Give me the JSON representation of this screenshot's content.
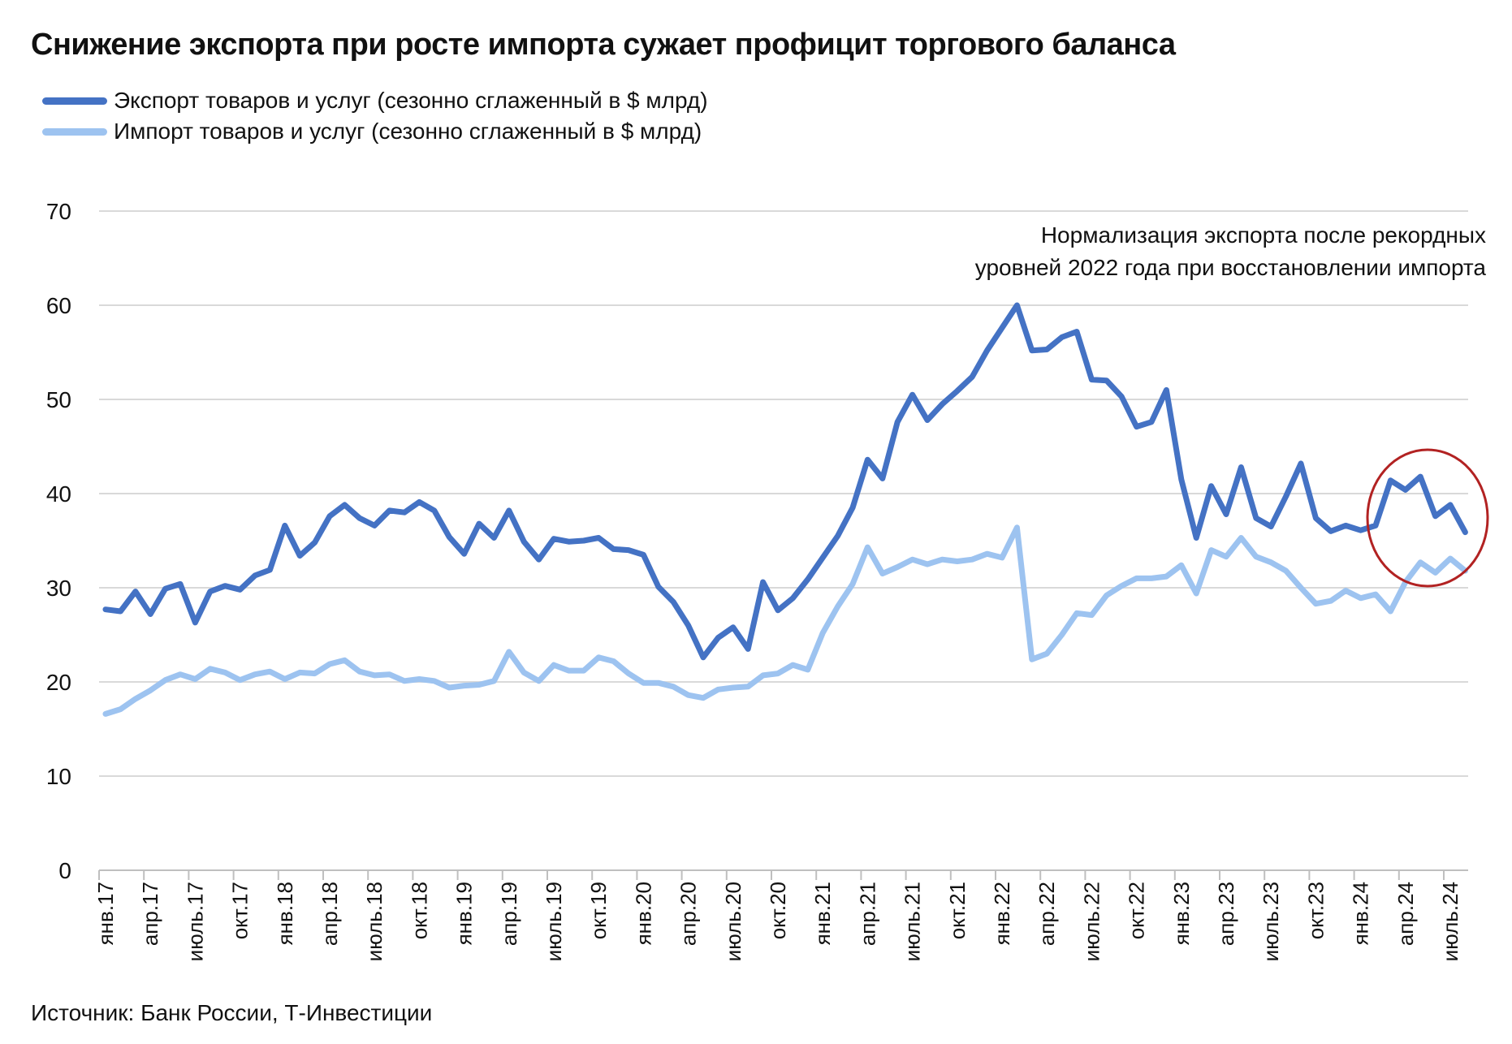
{
  "title": "Снижение экспорта при росте импорта сужает профицит торгового баланса",
  "source": "Источник: Банк России, Т-Инвестиции",
  "annotation": "Нормализация экспорта после рекордных уровней 2022 года при восстановлении импорта",
  "colors": {
    "export": "#4472c4",
    "import": "#9dc3f0",
    "grid": "#d9d9d9",
    "highlight": "#b22222"
  },
  "chart_data": {
    "type": "line",
    "ylim": [
      0,
      70
    ],
    "yticks": [
      0,
      10,
      20,
      30,
      40,
      50,
      60,
      70
    ],
    "grid": true,
    "legend_position": "top-left",
    "x": [
      "янв.17",
      "фев.17",
      "мар.17",
      "апр.17",
      "май.17",
      "июн.17",
      "июль.17",
      "авг.17",
      "сен.17",
      "окт.17",
      "ноя.17",
      "дек.17",
      "янв.18",
      "фев.18",
      "мар.18",
      "апр.18",
      "май.18",
      "июн.18",
      "июль.18",
      "авг.18",
      "сен.18",
      "окт.18",
      "ноя.18",
      "дек.18",
      "янв.19",
      "фев.19",
      "мар.19",
      "апр.19",
      "май.19",
      "июн.19",
      "июль.19",
      "авг.19",
      "сен.19",
      "окт.19",
      "ноя.19",
      "дек.19",
      "янв.20",
      "фев.20",
      "мар.20",
      "апр.20",
      "май.20",
      "июн.20",
      "июль.20",
      "авг.20",
      "сен.20",
      "окт.20",
      "ноя.20",
      "дек.20",
      "янв.21",
      "фев.21",
      "мар.21",
      "апр.21",
      "май.21",
      "июн.21",
      "июль.21",
      "авг.21",
      "сен.21",
      "окт.21",
      "ноя.21",
      "дек.21",
      "янв.22",
      "фев.22",
      "мар.22",
      "апр.22",
      "май.22",
      "июн.22",
      "июль.22",
      "авг.22",
      "сен.22",
      "окт.22",
      "ноя.22",
      "дек.22",
      "янв.23",
      "фев.23",
      "мар.23",
      "апр.23",
      "май.23",
      "июн.23",
      "июль.23",
      "авг.23",
      "сен.23",
      "окт.23",
      "ноя.23",
      "дек.23",
      "янв.24",
      "фев.24",
      "мар.24",
      "апр.24",
      "май.24",
      "июн.24",
      "июль.24",
      "авг.24"
    ],
    "xtick_labels": [
      "янв.17",
      "апр.17",
      "июль.17",
      "окт.17",
      "янв.18",
      "апр.18",
      "июль.18",
      "окт.18",
      "янв.19",
      "апр.19",
      "июль.19",
      "окт.19",
      "янв.20",
      "апр.20",
      "июль.20",
      "окт.20",
      "янв.21",
      "апр.21",
      "июль.21",
      "окт.21",
      "янв.22",
      "апр.22",
      "июль.22",
      "окт.22",
      "янв.23",
      "апр.23",
      "июль.23",
      "окт.23",
      "янв.24",
      "апр.24",
      "июль.24"
    ],
    "series": [
      {
        "name": "Экспорт товаров и услуг (сезонно сглаженный в $ млрд)",
        "values": [
          27.7,
          27.5,
          29.6,
          27.2,
          29.9,
          30.4,
          26.3,
          29.6,
          30.2,
          29.8,
          31.3,
          31.9,
          36.6,
          33.4,
          34.8,
          37.6,
          38.8,
          37.4,
          36.6,
          38.2,
          38.0,
          39.1,
          38.2,
          35.4,
          33.6,
          36.8,
          35.3,
          38.2,
          34.9,
          33.0,
          35.2,
          34.9,
          35.0,
          35.3,
          34.1,
          34.0,
          33.5,
          30.1,
          28.5,
          26.0,
          22.6,
          24.7,
          25.8,
          23.5,
          30.6,
          27.6,
          28.9,
          30.9,
          33.2,
          35.5,
          38.5,
          43.6,
          41.6,
          47.6,
          50.5,
          47.8,
          49.5,
          50.9,
          52.4,
          55.2,
          57.6,
          60.0,
          55.2,
          55.3,
          56.6,
          57.2,
          52.1,
          52.0,
          50.3,
          47.1,
          47.6,
          51.0,
          41.5,
          35.3,
          40.8,
          37.8,
          42.8,
          37.4,
          36.5,
          39.7,
          43.2,
          37.4,
          36.0,
          36.6,
          36.1,
          36.6,
          41.4,
          40.4,
          41.8,
          37.6,
          38.8,
          35.9
        ]
      },
      {
        "name": "Импорт товаров и услуг (сезонно сглаженный в $ млрд)",
        "values": [
          16.6,
          17.1,
          18.2,
          19.1,
          20.2,
          20.8,
          20.3,
          21.4,
          21.0,
          20.2,
          20.8,
          21.1,
          20.3,
          21.0,
          20.9,
          21.9,
          22.3,
          21.1,
          20.7,
          20.8,
          20.1,
          20.3,
          20.1,
          19.4,
          19.6,
          19.7,
          20.1,
          23.2,
          21.0,
          20.1,
          21.8,
          21.2,
          21.2,
          22.6,
          22.2,
          20.9,
          19.9,
          19.9,
          19.5,
          18.6,
          18.3,
          19.2,
          19.4,
          19.5,
          20.7,
          20.9,
          21.8,
          21.3,
          25.2,
          28.0,
          30.4,
          34.3,
          31.5,
          32.2,
          33.0,
          32.5,
          33.0,
          32.8,
          33.0,
          33.6,
          33.2,
          36.4,
          22.4,
          23.0,
          25.0,
          27.3,
          27.1,
          29.2,
          30.2,
          31.0,
          31.0,
          31.2,
          32.4,
          29.4,
          34.0,
          33.3,
          35.3,
          33.3,
          32.7,
          31.8,
          30.0,
          28.3,
          28.6,
          29.7,
          28.9,
          29.3,
          27.5,
          30.6,
          32.7,
          31.6,
          33.1,
          31.8
        ]
      }
    ]
  }
}
